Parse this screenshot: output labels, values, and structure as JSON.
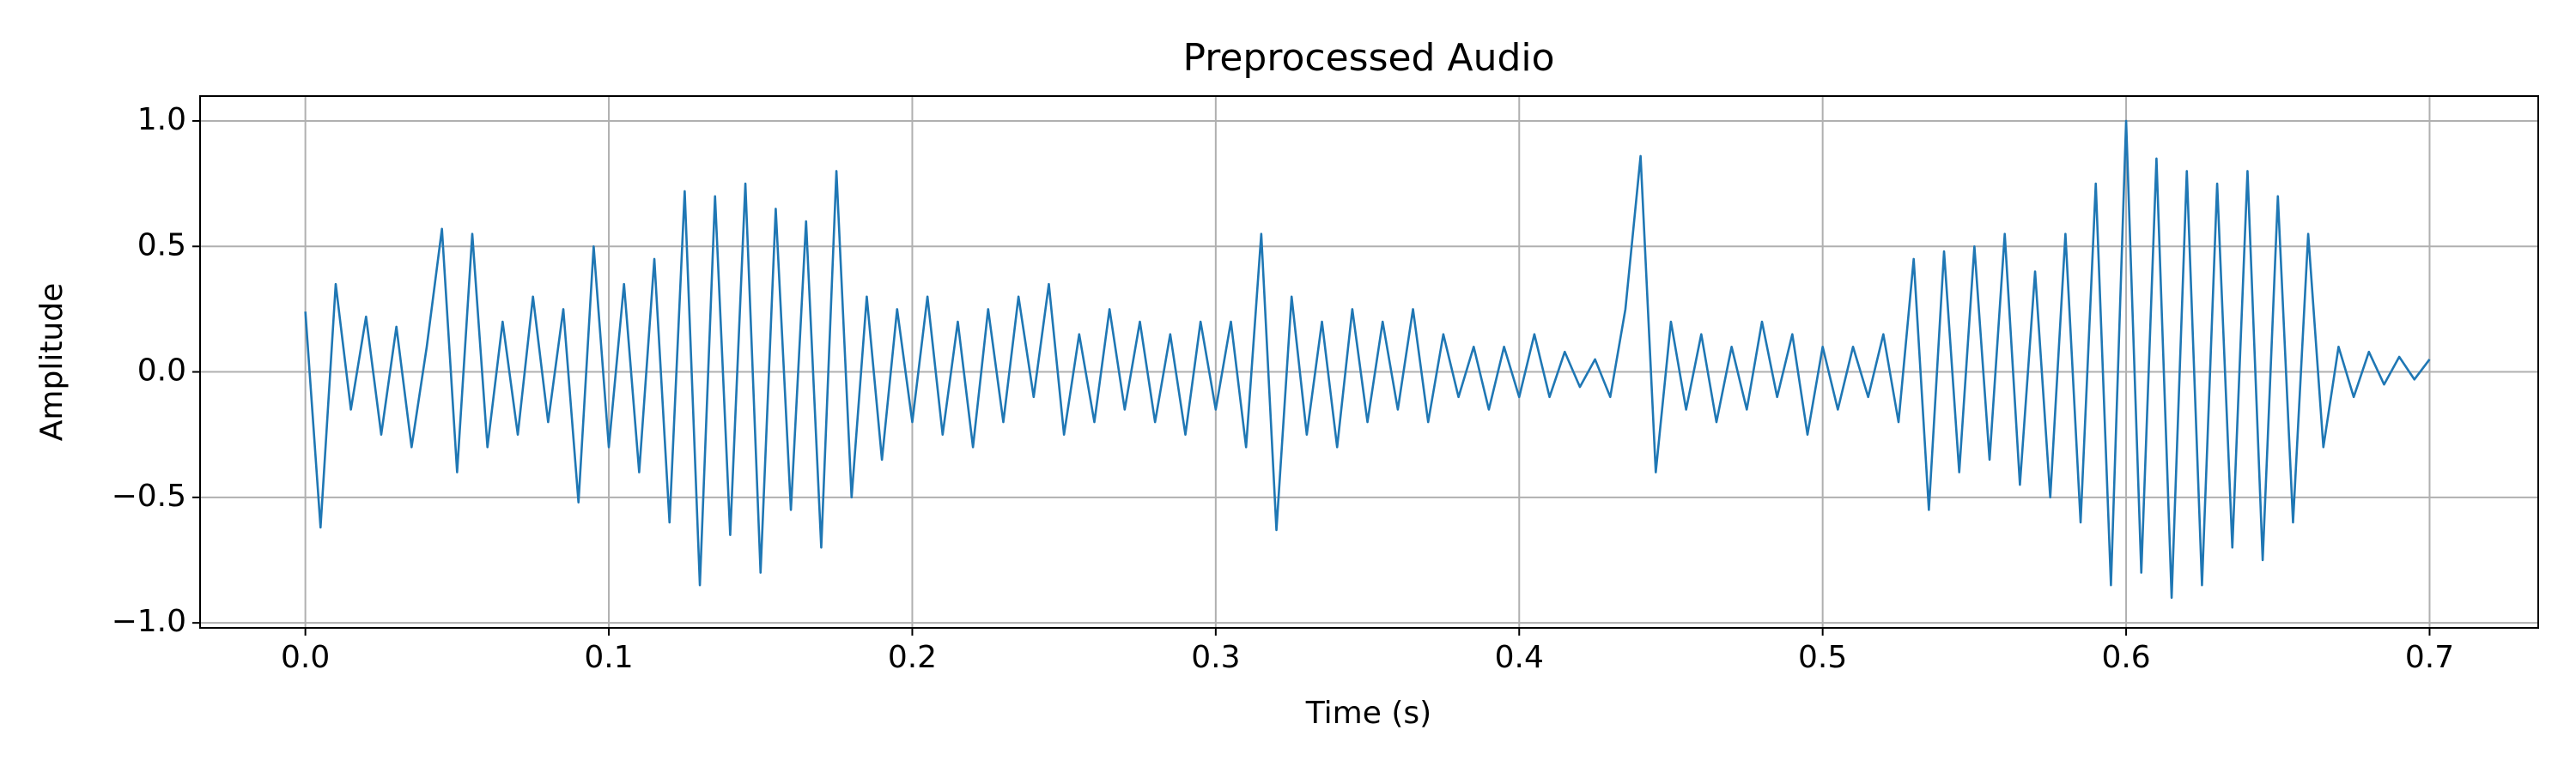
{
  "chart_data": {
    "type": "line",
    "title": "Preprocessed Audio",
    "x_label": "Time (s)",
    "y_label": "Amplitude",
    "x": [
      0.0,
      0.005,
      0.01,
      0.015,
      0.02,
      0.025,
      0.03,
      0.035,
      0.04,
      0.045,
      0.05,
      0.055,
      0.06,
      0.065,
      0.07,
      0.075,
      0.08,
      0.085,
      0.09,
      0.095,
      0.1,
      0.105,
      0.11,
      0.115,
      0.12,
      0.125,
      0.13,
      0.135,
      0.14,
      0.145,
      0.15,
      0.155,
      0.16,
      0.165,
      0.17,
      0.175,
      0.18,
      0.185,
      0.19,
      0.195,
      0.2,
      0.205,
      0.21,
      0.215,
      0.22,
      0.225,
      0.23,
      0.235,
      0.24,
      0.245,
      0.25,
      0.255,
      0.26,
      0.265,
      0.27,
      0.275,
      0.28,
      0.285,
      0.29,
      0.295,
      0.3,
      0.305,
      0.31,
      0.315,
      0.32,
      0.325,
      0.33,
      0.335,
      0.34,
      0.345,
      0.35,
      0.355,
      0.36,
      0.365,
      0.37,
      0.375,
      0.38,
      0.385,
      0.39,
      0.395,
      0.4,
      0.405,
      0.41,
      0.415,
      0.42,
      0.425,
      0.43,
      0.435,
      0.44,
      0.445,
      0.45,
      0.455,
      0.46,
      0.465,
      0.47,
      0.475,
      0.48,
      0.485,
      0.49,
      0.495,
      0.5,
      0.505,
      0.51,
      0.515,
      0.52,
      0.525,
      0.53,
      0.535,
      0.54,
      0.545,
      0.55,
      0.555,
      0.56,
      0.565,
      0.57,
      0.575,
      0.58,
      0.585,
      0.59,
      0.595,
      0.6,
      0.605,
      0.61,
      0.615,
      0.62,
      0.625,
      0.63,
      0.635,
      0.64,
      0.645,
      0.65,
      0.655,
      0.66,
      0.665,
      0.67,
      0.675,
      0.68,
      0.685,
      0.69,
      0.695,
      0.7
    ],
    "values": [
      0.24,
      -0.62,
      0.35,
      -0.15,
      0.22,
      -0.25,
      0.18,
      -0.3,
      0.1,
      0.57,
      -0.4,
      0.55,
      -0.3,
      0.2,
      -0.25,
      0.3,
      -0.2,
      0.25,
      -0.52,
      0.5,
      -0.3,
      0.35,
      -0.4,
      0.45,
      -0.6,
      0.72,
      -0.85,
      0.7,
      -0.65,
      0.75,
      -0.8,
      0.65,
      -0.55,
      0.6,
      -0.7,
      0.8,
      -0.5,
      0.3,
      -0.35,
      0.25,
      -0.2,
      0.3,
      -0.25,
      0.2,
      -0.3,
      0.25,
      -0.2,
      0.3,
      -0.1,
      0.35,
      -0.25,
      0.15,
      -0.2,
      0.25,
      -0.15,
      0.2,
      -0.2,
      0.15,
      -0.25,
      0.2,
      -0.15,
      0.2,
      -0.3,
      0.55,
      -0.63,
      0.3,
      -0.25,
      0.2,
      -0.3,
      0.25,
      -0.2,
      0.2,
      -0.15,
      0.25,
      -0.2,
      0.15,
      -0.1,
      0.1,
      -0.15,
      0.1,
      -0.1,
      0.15,
      -0.1,
      0.08,
      -0.06,
      0.05,
      -0.1,
      0.25,
      0.86,
      -0.4,
      0.2,
      -0.15,
      0.15,
      -0.2,
      0.1,
      -0.15,
      0.2,
      -0.1,
      0.15,
      -0.25,
      0.1,
      -0.15,
      0.1,
      -0.1,
      0.15,
      -0.2,
      0.45,
      -0.55,
      0.48,
      -0.4,
      0.5,
      -0.35,
      0.55,
      -0.45,
      0.4,
      -0.5,
      0.55,
      -0.6,
      0.75,
      -0.85,
      1.0,
      -0.8,
      0.85,
      -0.9,
      0.8,
      -0.85,
      0.75,
      -0.7,
      0.8,
      -0.75,
      0.7,
      -0.6,
      0.55,
      -0.3,
      0.1,
      -0.1,
      0.08,
      -0.05,
      0.06,
      -0.03,
      0.05
    ],
    "color": "#1f77b4",
    "xlim": [
      -0.0347,
      0.7358
    ],
    "ylim": [
      -1.02,
      1.099
    ],
    "xticks": [
      {
        "value": 0,
        "label": "0.0"
      },
      0.1,
      0.2,
      0.3,
      0.4,
      0.5,
      0.6,
      0.7
    ],
    "yticks": [
      {
        "value": -1,
        "label": "−1.0"
      },
      {
        "value": -0.5,
        "label": "−0.5"
      },
      {
        "value": 0,
        "label": "0.0"
      },
      0.5,
      {
        "value": 1,
        "label": "1.0"
      }
    ],
    "grid": true
  }
}
